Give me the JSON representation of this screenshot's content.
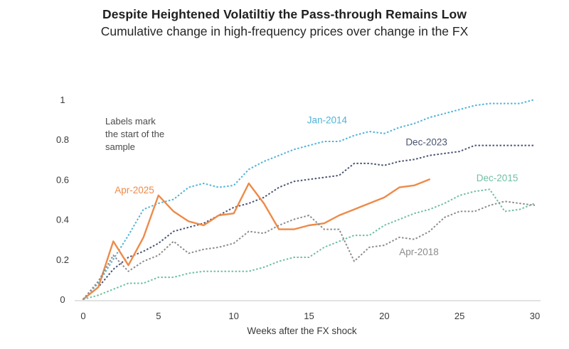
{
  "chart_data": {
    "type": "line",
    "title": "Despite Heightened Volatiltiy the Pass-through Remains Low",
    "subtitle": "Cumulative change in high-frequency prices over change in the FX",
    "xlabel": "Weeks after the FX shock",
    "ylabel": "",
    "xlim": [
      0,
      30
    ],
    "ylim": [
      0,
      1
    ],
    "xticks": [
      0,
      5,
      10,
      15,
      20,
      25,
      30
    ],
    "yticks": [
      0,
      0.2,
      0.4,
      0.6,
      0.8,
      1
    ],
    "ytick_labels": [
      "0",
      "0.2",
      "0.4",
      "0.6",
      "0.8",
      "1"
    ],
    "grid": false,
    "legend": "none (inline series labels)",
    "annotation": [
      "Labels mark",
      "the start of the",
      "sample"
    ],
    "series": [
      {
        "name": "Jan-2014",
        "color": "#4FB3D9",
        "style": "dotted",
        "x": [
          0,
          1,
          2,
          3,
          4,
          5,
          6,
          7,
          8,
          9,
          10,
          11,
          12,
          13,
          14,
          15,
          16,
          17,
          18,
          19,
          20,
          21,
          22,
          23,
          24,
          25,
          26,
          27,
          28,
          29,
          30
        ],
        "values": [
          0,
          0.08,
          0.2,
          0.32,
          0.45,
          0.48,
          0.5,
          0.56,
          0.58,
          0.56,
          0.57,
          0.65,
          0.69,
          0.72,
          0.75,
          0.77,
          0.79,
          0.79,
          0.82,
          0.84,
          0.83,
          0.86,
          0.88,
          0.91,
          0.93,
          0.95,
          0.97,
          0.98,
          0.98,
          0.98,
          1.0
        ]
      },
      {
        "name": "Dec-2023",
        "color": "#4A5472",
        "style": "dotted",
        "x": [
          0,
          1,
          2,
          3,
          4,
          5,
          6,
          7,
          8,
          9,
          10,
          11,
          12,
          13,
          14,
          15,
          16,
          17,
          18,
          19,
          20,
          21,
          22,
          23,
          24,
          25,
          26,
          27,
          28,
          29,
          30
        ],
        "values": [
          0,
          0.06,
          0.15,
          0.21,
          0.24,
          0.28,
          0.34,
          0.36,
          0.38,
          0.42,
          0.46,
          0.48,
          0.51,
          0.56,
          0.59,
          0.6,
          0.61,
          0.62,
          0.68,
          0.68,
          0.67,
          0.69,
          0.7,
          0.72,
          0.73,
          0.74,
          0.77,
          0.77,
          0.77,
          0.77,
          0.77
        ]
      },
      {
        "name": "Apr-2025",
        "color": "#EE8A48",
        "style": "solid",
        "x": [
          0,
          1,
          2,
          3,
          4,
          5,
          6,
          7,
          8,
          9,
          10,
          11,
          12,
          13,
          14,
          15,
          16,
          17,
          18,
          19,
          20,
          21,
          22,
          23
        ],
        "values": [
          0,
          0.06,
          0.29,
          0.17,
          0.31,
          0.52,
          0.44,
          0.39,
          0.37,
          0.42,
          0.43,
          0.58,
          0.48,
          0.35,
          0.35,
          0.37,
          0.38,
          0.42,
          0.45,
          0.48,
          0.51,
          0.56,
          0.57,
          0.6
        ]
      },
      {
        "name": "Dec-2015",
        "color": "#6FBFA6",
        "style": "dotted",
        "x": [
          0,
          1,
          2,
          3,
          4,
          5,
          6,
          7,
          8,
          9,
          10,
          11,
          12,
          13,
          14,
          15,
          16,
          17,
          18,
          19,
          20,
          21,
          22,
          23,
          24,
          25,
          26,
          27,
          28,
          29,
          30
        ],
        "values": [
          0,
          0.02,
          0.05,
          0.08,
          0.08,
          0.11,
          0.11,
          0.13,
          0.14,
          0.14,
          0.14,
          0.14,
          0.16,
          0.19,
          0.21,
          0.21,
          0.26,
          0.29,
          0.32,
          0.32,
          0.37,
          0.4,
          0.43,
          0.45,
          0.48,
          0.52,
          0.54,
          0.55,
          0.44,
          0.45,
          0.48
        ]
      },
      {
        "name": "Apr-2018",
        "color": "#8C8C8C",
        "style": "dotted",
        "x": [
          0,
          1,
          2,
          3,
          4,
          5,
          6,
          7,
          8,
          9,
          10,
          11,
          12,
          13,
          14,
          15,
          16,
          17,
          18,
          19,
          20,
          21,
          22,
          23,
          24,
          25,
          26,
          27,
          28,
          29,
          30
        ],
        "values": [
          0,
          0.09,
          0.22,
          0.14,
          0.19,
          0.22,
          0.29,
          0.23,
          0.25,
          0.26,
          0.28,
          0.34,
          0.33,
          0.37,
          0.4,
          0.42,
          0.35,
          0.35,
          0.19,
          0.26,
          0.27,
          0.31,
          0.3,
          0.34,
          0.41,
          0.44,
          0.44,
          0.47,
          0.49,
          0.48,
          0.47
        ]
      }
    ],
    "series_label_anchor": [
      {
        "name": "Jan-2014",
        "x": 16.2,
        "y": 0.88
      },
      {
        "name": "Dec-2023",
        "x": 22.8,
        "y": 0.77
      },
      {
        "name": "Apr-2025",
        "x": 3.4,
        "y": 0.53
      },
      {
        "name": "Dec-2015",
        "x": 27.5,
        "y": 0.59
      },
      {
        "name": "Apr-2018",
        "x": 22.3,
        "y": 0.22
      }
    ]
  }
}
